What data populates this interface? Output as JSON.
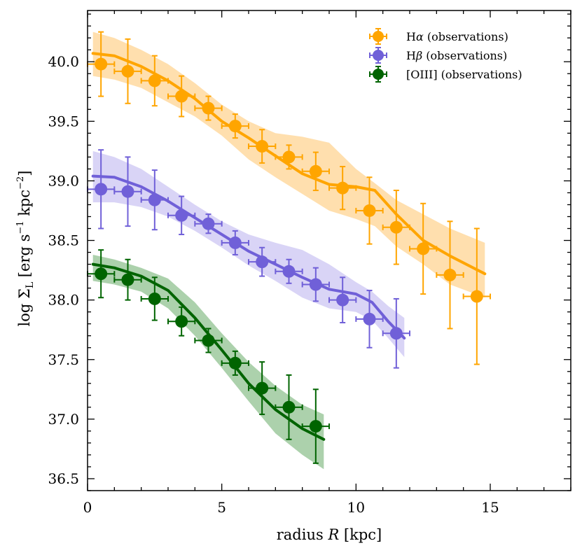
{
  "chart_data": {
    "type": "line",
    "xlabel": "radius R [kpc]",
    "ylabel": "log Σ_L [erg s⁻¹ kpc⁻²]",
    "xlabel_parts": {
      "prefix": "radius ",
      "var": "R",
      "suffix": " [kpc]"
    },
    "ylabel_parts": {
      "prefix": "log Σ",
      "sub": "L",
      "mid": " [erg s",
      "sup1": "−1",
      "mid2": " kpc",
      "sup2": "−2",
      "suffix": "]"
    },
    "xlim": [
      0,
      18
    ],
    "ylim": [
      36.4,
      40.43
    ],
    "xticks": [
      0,
      5,
      10,
      15
    ],
    "yticks": [
      36.5,
      37.0,
      37.5,
      38.0,
      38.5,
      39.0,
      39.5,
      40.0
    ],
    "xtick_labels": [
      "0",
      "5",
      "10",
      "15"
    ],
    "ytick_labels": [
      "36.5",
      "37.0",
      "37.5",
      "38.0",
      "38.5",
      "39.0",
      "39.5",
      "40.0"
    ],
    "legend_position": "top-right",
    "series": [
      {
        "name": "Hα (observations)",
        "legend_main": "H",
        "legend_greek": "α",
        "legend_rest": " (observations)",
        "color": "#ffa500",
        "band_color": "#ffd9a0",
        "x": [
          0.5,
          1.5,
          2.5,
          3.5,
          4.5,
          5.5,
          6.5,
          7.5,
          8.5,
          9.5,
          10.5,
          11.5,
          12.5,
          13.5,
          14.5
        ],
        "y": [
          39.98,
          39.92,
          39.84,
          39.71,
          39.61,
          39.46,
          39.29,
          39.2,
          39.08,
          38.94,
          38.75,
          38.61,
          38.43,
          38.21,
          38.03
        ],
        "yerr": [
          0.27,
          0.27,
          0.21,
          0.17,
          0.1,
          0.1,
          0.14,
          0.1,
          0.16,
          0.18,
          0.28,
          0.31,
          0.38,
          0.45,
          0.57
        ],
        "xerr": 0.5,
        "model_x": [
          0.2,
          1.0,
          2.0,
          3.0,
          4.0,
          5.0,
          6.0,
          7.0,
          8.0,
          9.0,
          10.0,
          10.7,
          11.5,
          12.5,
          13.5,
          14.8
        ],
        "model_y": [
          40.07,
          40.05,
          39.96,
          39.84,
          39.69,
          39.5,
          39.36,
          39.21,
          39.06,
          38.97,
          38.95,
          38.92,
          38.72,
          38.5,
          38.37,
          38.22
        ],
        "band_upper": [
          40.25,
          40.2,
          40.1,
          39.98,
          39.82,
          39.64,
          39.5,
          39.4,
          39.37,
          39.32,
          39.1,
          38.98,
          38.84,
          38.72,
          38.6,
          38.48
        ],
        "band_lower": [
          39.88,
          39.85,
          39.78,
          39.66,
          39.54,
          39.38,
          39.18,
          39.03,
          38.89,
          38.75,
          38.68,
          38.62,
          38.45,
          38.3,
          38.13,
          38.02
        ]
      },
      {
        "name": "Hβ (observations)",
        "legend_main": "H",
        "legend_greek": "β",
        "legend_rest": " (observations)",
        "color": "#7060d8",
        "band_color": "#d2cdf4",
        "x": [
          0.5,
          1.5,
          2.5,
          3.5,
          4.5,
          5.5,
          6.5,
          7.5,
          8.5,
          9.5,
          10.5,
          11.5
        ],
        "y": [
          38.93,
          38.91,
          38.84,
          38.71,
          38.64,
          38.48,
          38.32,
          38.24,
          38.13,
          38.0,
          37.84,
          37.72
        ],
        "yerr": [
          0.33,
          0.29,
          0.25,
          0.16,
          0.08,
          0.1,
          0.12,
          0.1,
          0.14,
          0.19,
          0.24,
          0.29
        ],
        "xerr": 0.5,
        "model_x": [
          0.2,
          1.0,
          2.0,
          3.0,
          4.0,
          5.0,
          6.0,
          7.0,
          8.0,
          9.0,
          10.0,
          10.6,
          11.2,
          11.8
        ],
        "model_y": [
          39.04,
          39.03,
          38.95,
          38.83,
          38.69,
          38.55,
          38.41,
          38.3,
          38.19,
          38.09,
          38.05,
          37.98,
          37.82,
          37.68
        ],
        "band_upper": [
          39.25,
          39.2,
          39.1,
          38.95,
          38.8,
          38.66,
          38.55,
          38.48,
          38.42,
          38.3,
          38.15,
          38.07,
          37.95,
          37.85
        ],
        "band_lower": [
          38.82,
          38.82,
          38.78,
          38.7,
          38.58,
          38.44,
          38.29,
          38.16,
          38.02,
          37.93,
          37.9,
          37.83,
          37.68,
          37.52
        ]
      },
      {
        "name": "[OIII] (observations)",
        "legend_main": "[OIII]",
        "legend_greek": "",
        "legend_rest": " (observations)",
        "color": "#006400",
        "band_color": "#9dc99d",
        "x": [
          0.5,
          1.5,
          2.5,
          3.5,
          4.5,
          5.5,
          6.5,
          7.5,
          8.5
        ],
        "y": [
          38.22,
          38.17,
          38.01,
          37.82,
          37.66,
          37.47,
          37.26,
          37.1,
          36.94
        ],
        "yerr": [
          0.2,
          0.17,
          0.18,
          0.12,
          0.1,
          0.1,
          0.22,
          0.27,
          0.31
        ],
        "xerr": 0.5,
        "model_x": [
          0.2,
          1.0,
          2.0,
          3.0,
          4.0,
          5.0,
          6.0,
          7.0,
          8.0,
          8.8
        ],
        "model_y": [
          38.3,
          38.27,
          38.2,
          38.08,
          37.85,
          37.58,
          37.3,
          37.08,
          36.92,
          36.83
        ],
        "band_upper": [
          38.38,
          38.34,
          38.27,
          38.18,
          37.98,
          37.72,
          37.48,
          37.28,
          37.12,
          37.04
        ],
        "band_lower": [
          38.16,
          38.13,
          38.07,
          37.93,
          37.7,
          37.43,
          37.15,
          36.88,
          36.7,
          36.58
        ]
      }
    ]
  }
}
